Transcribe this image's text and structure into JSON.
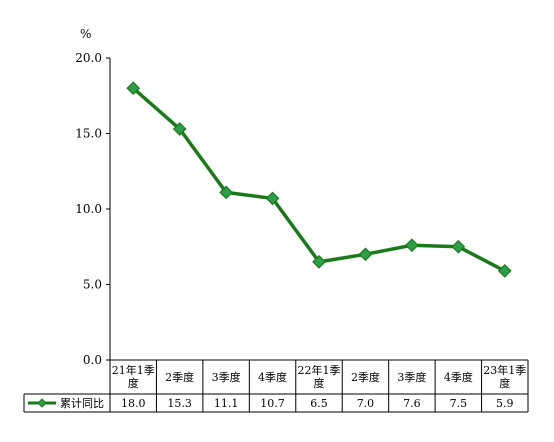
{
  "chart_data": {
    "type": "line",
    "unit": "%",
    "categories": [
      [
        "21年1季",
        "度"
      ],
      [
        "2季度"
      ],
      [
        "3季度"
      ],
      [
        "4季度"
      ],
      [
        "22年1季",
        "度"
      ],
      [
        "2季度"
      ],
      [
        "3季度"
      ],
      [
        "4季度"
      ],
      [
        "23年1季",
        "度"
      ]
    ],
    "series": [
      {
        "name": "累计同比",
        "color": "#1a7a1a",
        "marker_color": "#2e9e4a",
        "values": [
          18.0,
          15.3,
          11.1,
          10.7,
          6.5,
          7.0,
          7.6,
          7.5,
          5.9
        ],
        "value_labels": [
          "18.0",
          "15.3",
          "11.1",
          "10.7",
          "6.5",
          "7.0",
          "7.6",
          "7.5",
          "5.9"
        ]
      }
    ],
    "ylim": [
      0,
      20
    ],
    "yticks": [
      "0.0",
      "5.0",
      "10.0",
      "15.0",
      "20.0"
    ],
    "ytick_values": [
      0,
      5,
      10,
      15,
      20
    ],
    "data_table": true,
    "grid": false
  }
}
